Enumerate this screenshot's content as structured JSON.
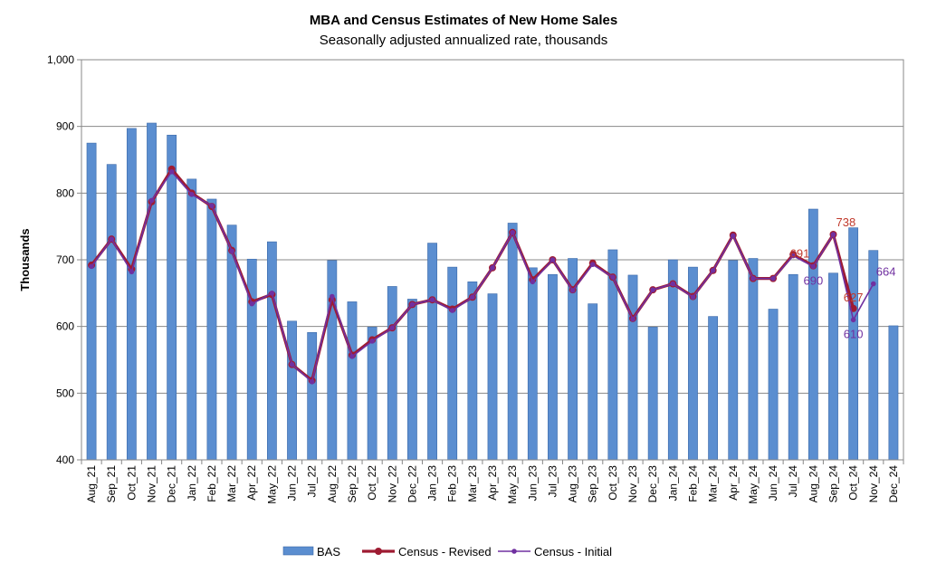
{
  "chart_data": {
    "type": "bar",
    "title": "MBA and Census Estimates of New Home Sales",
    "subtitle": "Seasonally adjusted annualized rate, thousands",
    "ylabel": "Thousands",
    "xlabel": "",
    "ylim": [
      400,
      1000
    ],
    "yticks": [
      "400",
      "500",
      "600",
      "700",
      "800",
      "900",
      "1,000"
    ],
    "grid": true,
    "legend_position": "bottom",
    "categories": [
      "Aug_21",
      "Sep_21",
      "Oct_21",
      "Nov_21",
      "Dec_21",
      "Jan_22",
      "Feb_22",
      "Mar_22",
      "Apr_22",
      "May_22",
      "Jun_22",
      "Jul_22",
      "Aug_22",
      "Sep_22",
      "Oct_22",
      "Nov_22",
      "Dec_22",
      "Jan_23",
      "Feb_23",
      "Mar_23",
      "Apr_23",
      "May_23",
      "Jun_23",
      "Jul_23",
      "Aug_23",
      "Sep_23",
      "Oct_23",
      "Nov_23",
      "Dec_23",
      "Jan_24",
      "Feb_24",
      "Mar_24",
      "Apr_24",
      "May_24",
      "Jun_24",
      "Jul_24",
      "Aug_24",
      "Sep_24",
      "Oct_24",
      "Nov_24",
      "Dec_24"
    ],
    "series": [
      {
        "name": "BAS",
        "kind": "bar",
        "color": "#5B8ED0",
        "values": [
          875,
          843,
          897,
          905,
          887,
          821,
          791,
          752,
          701,
          727,
          608,
          591,
          699,
          637,
          599,
          660,
          641,
          725,
          689,
          667,
          649,
          755,
          688,
          678,
          702,
          634,
          715,
          677,
          599,
          700,
          689,
          615,
          699,
          702,
          626,
          678,
          776,
          680,
          748,
          714,
          601
        ]
      },
      {
        "name": "Census - Revised",
        "kind": "line",
        "color": "#9E1B32",
        "values": [
          692,
          731,
          686,
          787,
          836,
          800,
          780,
          714,
          637,
          648,
          543,
          519,
          640,
          557,
          580,
          598,
          633,
          640,
          626,
          644,
          688,
          741,
          670,
          700,
          655,
          695,
          674,
          612,
          655,
          664,
          645,
          684,
          737,
          672,
          672,
          708,
          691,
          738,
          627,
          null,
          null
        ]
      },
      {
        "name": "Census - Initial",
        "kind": "line",
        "color": "#7030A0",
        "values": [
          690,
          731,
          682,
          789,
          832,
          798,
          781,
          713,
          634,
          650,
          543,
          517,
          645,
          555,
          578,
          598,
          633,
          640,
          624,
          644,
          688,
          741,
          667,
          700,
          654,
          693,
          674,
          611,
          655,
          664,
          644,
          684,
          736,
          672,
          672,
          706,
          690,
          738,
          610,
          664,
          null
        ]
      }
    ],
    "annotations": [
      {
        "text": "691",
        "series": "Census - Revised",
        "category": "Aug_24",
        "color": "#C0392B",
        "side": "above-left"
      },
      {
        "text": "690",
        "series": "Census - Initial",
        "category": "Aug_24",
        "color": "#7030A0",
        "side": "below"
      },
      {
        "text": "738",
        "series": "Census - Revised",
        "category": "Sep_24",
        "color": "#C0392B",
        "side": "above-right"
      },
      {
        "text": "627",
        "series": "Census - Revised",
        "category": "Oct_24",
        "color": "#C0392B",
        "side": "above"
      },
      {
        "text": "610",
        "series": "Census - Initial",
        "category": "Oct_24",
        "color": "#7030A0",
        "side": "below"
      },
      {
        "text": "664",
        "series": "Census - Initial",
        "category": "Nov_24",
        "color": "#7030A0",
        "side": "above-right"
      }
    ]
  }
}
